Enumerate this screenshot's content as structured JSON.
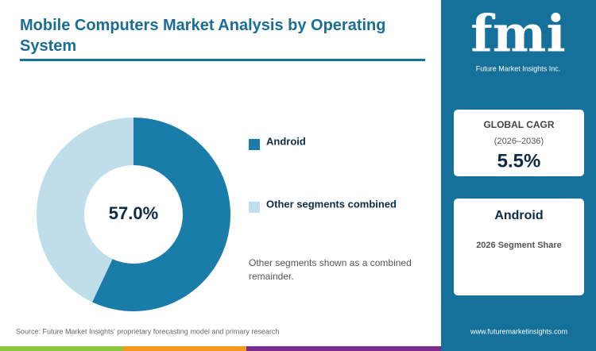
{
  "chart_data": {
    "type": "donut",
    "title": "Mobile Computers Market Analysis by Operating System",
    "categories": [
      "Android",
      "Other segments combined"
    ],
    "values": [
      57.0,
      43.0
    ],
    "value_labels": [
      "57.0%",
      null
    ],
    "colors": [
      "#1a7ca8",
      "#bfdeea"
    ],
    "note": "Other segments shown as a combined remainder.",
    "source": "Source: Future Market Insights' proprietary forecasting model and primary research"
  },
  "sidebar": {
    "logo": "fmi",
    "logo_subtitle": "Future Market Insights Inc.",
    "cagr_title": "GLOBAL CAGR",
    "cagr_period": "(2026–2036)",
    "cagr_value": "5.5%",
    "segment_title": "Android",
    "segment_subtitle": "2026 Segment Share",
    "website": "www.futuremarketinsights.com"
  }
}
